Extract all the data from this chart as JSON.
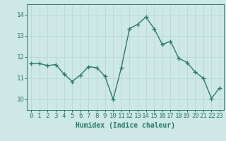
{
  "x": [
    0,
    1,
    2,
    3,
    4,
    5,
    6,
    7,
    8,
    9,
    10,
    11,
    12,
    13,
    14,
    15,
    16,
    17,
    18,
    19,
    20,
    21,
    22,
    23
  ],
  "y": [
    11.7,
    11.7,
    11.6,
    11.65,
    11.2,
    10.85,
    11.15,
    11.55,
    11.5,
    11.1,
    10.0,
    11.5,
    13.35,
    13.55,
    13.9,
    13.35,
    12.6,
    12.75,
    11.95,
    11.75,
    11.3,
    11.0,
    10.05,
    10.55
  ],
  "line_color": "#2d7a6e",
  "marker": "+",
  "marker_size": 4,
  "bg_color": "#cde8e5",
  "grid_color": "#b8d4d0",
  "axis_bg": "#cde8e5",
  "xlabel": "Humidex (Indice chaleur)",
  "xlabel_fontsize": 7,
  "tick_fontsize": 6.5,
  "ylim": [
    9.5,
    14.5
  ],
  "xlim": [
    -0.5,
    23.5
  ],
  "yticks": [
    10,
    11,
    12,
    13,
    14
  ],
  "xticks": [
    0,
    1,
    2,
    3,
    4,
    5,
    6,
    7,
    8,
    9,
    10,
    11,
    12,
    13,
    14,
    15,
    16,
    17,
    18,
    19,
    20,
    21,
    22,
    23
  ],
  "line_width": 1.0
}
